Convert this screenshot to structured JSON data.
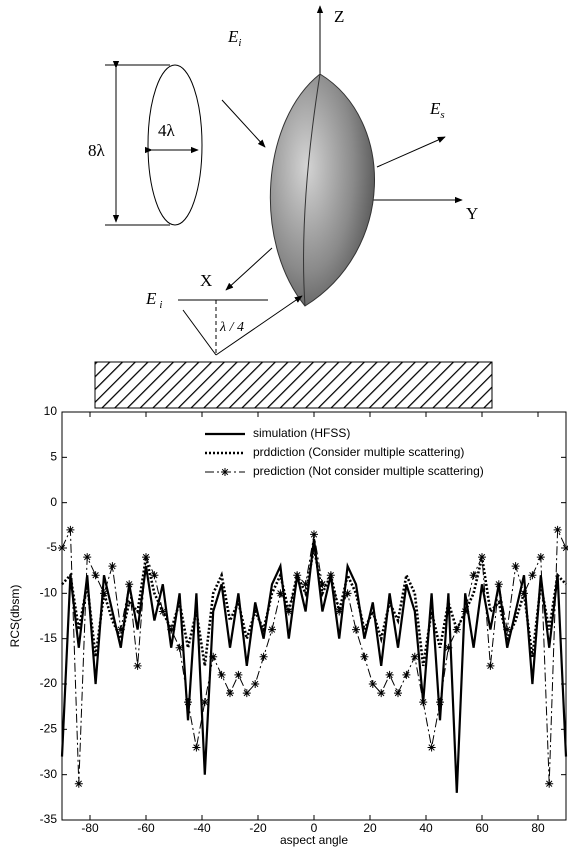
{
  "diagram": {
    "labels": {
      "z_axis": "Z",
      "y_axis": "Y",
      "x_axis": "X",
      "incident_top": {
        "main": "E",
        "sub": "i"
      },
      "scattered": {
        "main": "E",
        "sub": "s"
      },
      "incident_ground": {
        "main": "E",
        "sub": "i"
      },
      "length": "8λ",
      "width": "4λ",
      "height": "λ / 4"
    }
  },
  "chart_data": {
    "type": "line",
    "xlabel": "aspect angle",
    "ylabel": "RCS(dbsm)",
    "xlim": [
      -90,
      90
    ],
    "ylim": [
      -35,
      10
    ],
    "xticks": [
      -80,
      -60,
      -40,
      -20,
      0,
      20,
      40,
      60,
      80
    ],
    "yticks": [
      -35,
      -30,
      -25,
      -20,
      -15,
      -10,
      -5,
      0,
      5,
      10
    ],
    "legend": "upper right",
    "x": [
      -90,
      -87,
      -84,
      -81,
      -78,
      -75,
      -72,
      -69,
      -66,
      -63,
      -60,
      -57,
      -54,
      -51,
      -48,
      -45,
      -42,
      -39,
      -36,
      -33,
      -30,
      -27,
      -24,
      -21,
      -18,
      -15,
      -12,
      -9,
      -6,
      -3,
      0,
      3,
      6,
      9,
      12,
      15,
      18,
      21,
      24,
      27,
      30,
      33,
      36,
      39,
      42,
      45,
      48,
      51,
      54,
      57,
      60,
      63,
      66,
      69,
      72,
      75,
      78,
      81,
      84,
      87,
      90
    ],
    "series": [
      {
        "name": "simulation (HFSS)",
        "color": "#000000",
        "style": "solid",
        "values": [
          -28,
          -8,
          -16,
          -8,
          -20,
          -8,
          -12,
          -16,
          -9,
          -14,
          -7,
          -13,
          -9,
          -16,
          -10,
          -24,
          -10,
          -30,
          -12,
          -9,
          -16,
          -10,
          -18,
          -11,
          -15,
          -9,
          -7,
          -15,
          -8,
          -12,
          -4,
          -12,
          -8,
          -15,
          -7,
          -9,
          -15,
          -11,
          -18,
          -10,
          -16,
          -9,
          -12,
          -22,
          -10,
          -24,
          -10,
          -32,
          -10,
          -16,
          -9,
          -14,
          -9,
          -16,
          -12,
          -8,
          -20,
          -8,
          -16,
          -8,
          -28
        ]
      },
      {
        "name": "prddiction (Consider multiple scattering)",
        "color": "#000000",
        "style": "dotted",
        "values": [
          -9,
          -8,
          -14,
          -9,
          -17,
          -10,
          -13,
          -15,
          -11,
          -12,
          -6,
          -10,
          -12,
          -14,
          -11,
          -16,
          -12,
          -18,
          -10,
          -8,
          -13,
          -11,
          -15,
          -12,
          -14,
          -10,
          -8,
          -12,
          -8,
          -10,
          -5,
          -10,
          -8,
          -12,
          -8,
          -10,
          -14,
          -12,
          -15,
          -11,
          -13,
          -8,
          -10,
          -18,
          -12,
          -16,
          -11,
          -14,
          -12,
          -10,
          -6,
          -12,
          -11,
          -15,
          -13,
          -10,
          -17,
          -9,
          -14,
          -8,
          -9
        ]
      },
      {
        "name": "prediction (Not consider multiple scattering)",
        "color": "#000000",
        "style": "dash-dot",
        "marker": "star",
        "values": [
          -5,
          -3,
          -31,
          -6,
          -8,
          -10,
          -7,
          -14,
          -9,
          -18,
          -6,
          -8,
          -12,
          -14,
          -16,
          -22,
          -27,
          -22,
          -17,
          -19,
          -21,
          -19,
          -21,
          -20,
          -17,
          -14,
          -10,
          -12,
          -8,
          -9,
          -3.5,
          -9,
          -8,
          -12,
          -10,
          -14,
          -17,
          -20,
          -21,
          -19,
          -21,
          -19,
          -17,
          -22,
          -27,
          -22,
          -16,
          -14,
          -12,
          -8,
          -6,
          -18,
          -9,
          -14,
          -7,
          -10,
          -8,
          -6,
          -31,
          -3,
          -5
        ]
      }
    ]
  }
}
